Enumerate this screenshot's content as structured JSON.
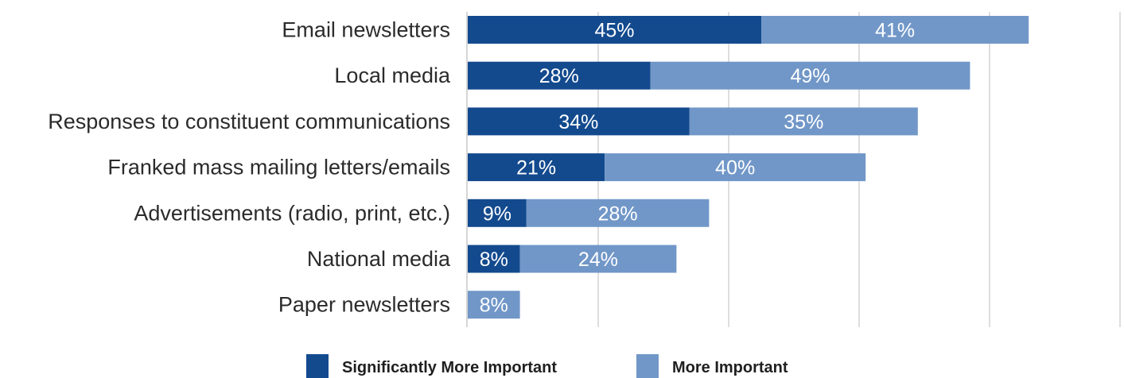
{
  "chart_data": {
    "type": "bar",
    "orientation": "horizontal",
    "stacked": true,
    "categories": [
      "Email newsletters",
      "Local media",
      "Responses to constituent communications",
      "Franked mass mailing letters/emails",
      "Advertisements (radio, print, etc.)",
      "National media",
      "Paper newsletters"
    ],
    "series": [
      {
        "name": "Significantly More Important",
        "color": "#134a8e",
        "values": [
          45,
          28,
          34,
          21,
          9,
          8,
          null
        ],
        "labels": [
          "45%",
          "28%",
          "34%",
          "21%",
          "9%",
          "8%",
          ""
        ]
      },
      {
        "name": "More Important",
        "color": "#7197c8",
        "values": [
          41,
          49,
          35,
          40,
          28,
          24,
          8
        ],
        "labels": [
          "41%",
          "49%",
          "35%",
          "40%",
          "28%",
          "24%",
          "8%"
        ]
      }
    ],
    "xlim": [
      0,
      100
    ],
    "grid": true,
    "legend_position": "bottom"
  }
}
